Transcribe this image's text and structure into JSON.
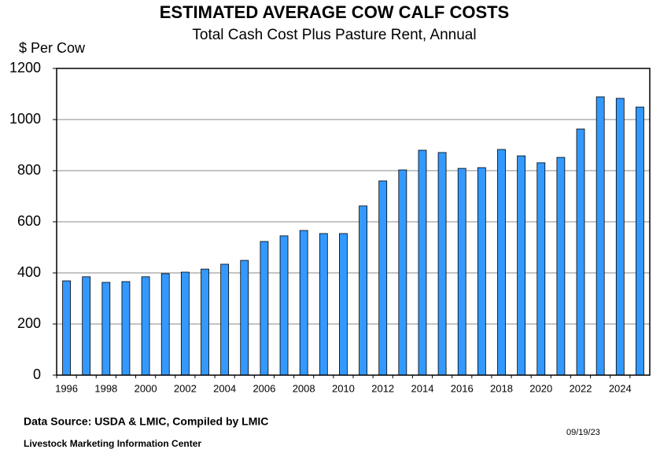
{
  "chart_data": {
    "type": "bar",
    "title": "ESTIMATED AVERAGE COW CALF COSTS",
    "subtitle": "Total Cash Cost Plus Pasture Rent, Annual",
    "y_label": "$ Per Cow",
    "source": "Data Source:  USDA & LMIC, Compiled by LMIC",
    "footer": "Livestock Marketing Information Center",
    "date": "09/19/23",
    "categories": [
      "1996",
      null,
      "1998",
      null,
      "2000",
      null,
      "2002",
      null,
      "2004",
      null,
      "2006",
      null,
      "2008",
      null,
      "2010",
      null,
      "2012",
      null,
      "2014",
      null,
      "2016",
      null,
      "2018",
      null,
      "2020",
      null,
      "2022",
      null,
      "2024",
      null
    ],
    "values": [
      369,
      385,
      363,
      366,
      385,
      397,
      403,
      415,
      434,
      449,
      523,
      545,
      566,
      554,
      554,
      662,
      760,
      803,
      880,
      871,
      809,
      812,
      883,
      858,
      831,
      852,
      963,
      1089,
      1083,
      1049
    ],
    "color": "#3399ff",
    "ylim": [
      0,
      1200
    ],
    "yticks": [
      0,
      200,
      400,
      600,
      800,
      1000,
      1200
    ],
    "grid": true
  }
}
